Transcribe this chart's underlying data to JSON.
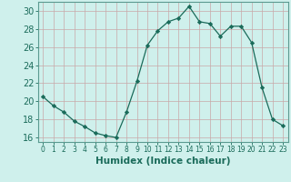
{
  "x": [
    0,
    1,
    2,
    3,
    4,
    5,
    6,
    7,
    8,
    9,
    10,
    11,
    12,
    13,
    14,
    15,
    16,
    17,
    18,
    19,
    20,
    21,
    22,
    23
  ],
  "y": [
    20.5,
    19.5,
    18.8,
    17.8,
    17.2,
    16.5,
    16.2,
    16.0,
    18.8,
    22.2,
    26.2,
    27.8,
    28.8,
    29.2,
    30.5,
    28.8,
    28.6,
    27.2,
    28.3,
    28.3,
    26.5,
    21.5,
    18.0,
    17.3
  ],
  "line_color": "#1a6b5a",
  "marker": "D",
  "marker_size": 2.2,
  "bg_color": "#cff0ec",
  "grid_color_h": "#c8a8a8",
  "grid_color_v": "#c8a8a8",
  "xlabel": "Humidex (Indice chaleur)",
  "xlim": [
    -0.5,
    23.5
  ],
  "ylim": [
    15.5,
    31.0
  ],
  "yticks": [
    16,
    18,
    20,
    22,
    24,
    26,
    28,
    30
  ],
  "xticks": [
    0,
    1,
    2,
    3,
    4,
    5,
    6,
    7,
    8,
    9,
    10,
    11,
    12,
    13,
    14,
    15,
    16,
    17,
    18,
    19,
    20,
    21,
    22,
    23
  ],
  "xtick_labels": [
    "0",
    "1",
    "2",
    "3",
    "4",
    "5",
    "6",
    "7",
    "8",
    "9",
    "10",
    "11",
    "12",
    "13",
    "14",
    "15",
    "16",
    "17",
    "18",
    "19",
    "20",
    "21",
    "22",
    "23"
  ],
  "tick_color": "#1a6b5a",
  "xlabel_fontsize": 7.5,
  "ytick_fontsize": 7,
  "xtick_fontsize": 5.5,
  "spine_color": "#5a9a90"
}
